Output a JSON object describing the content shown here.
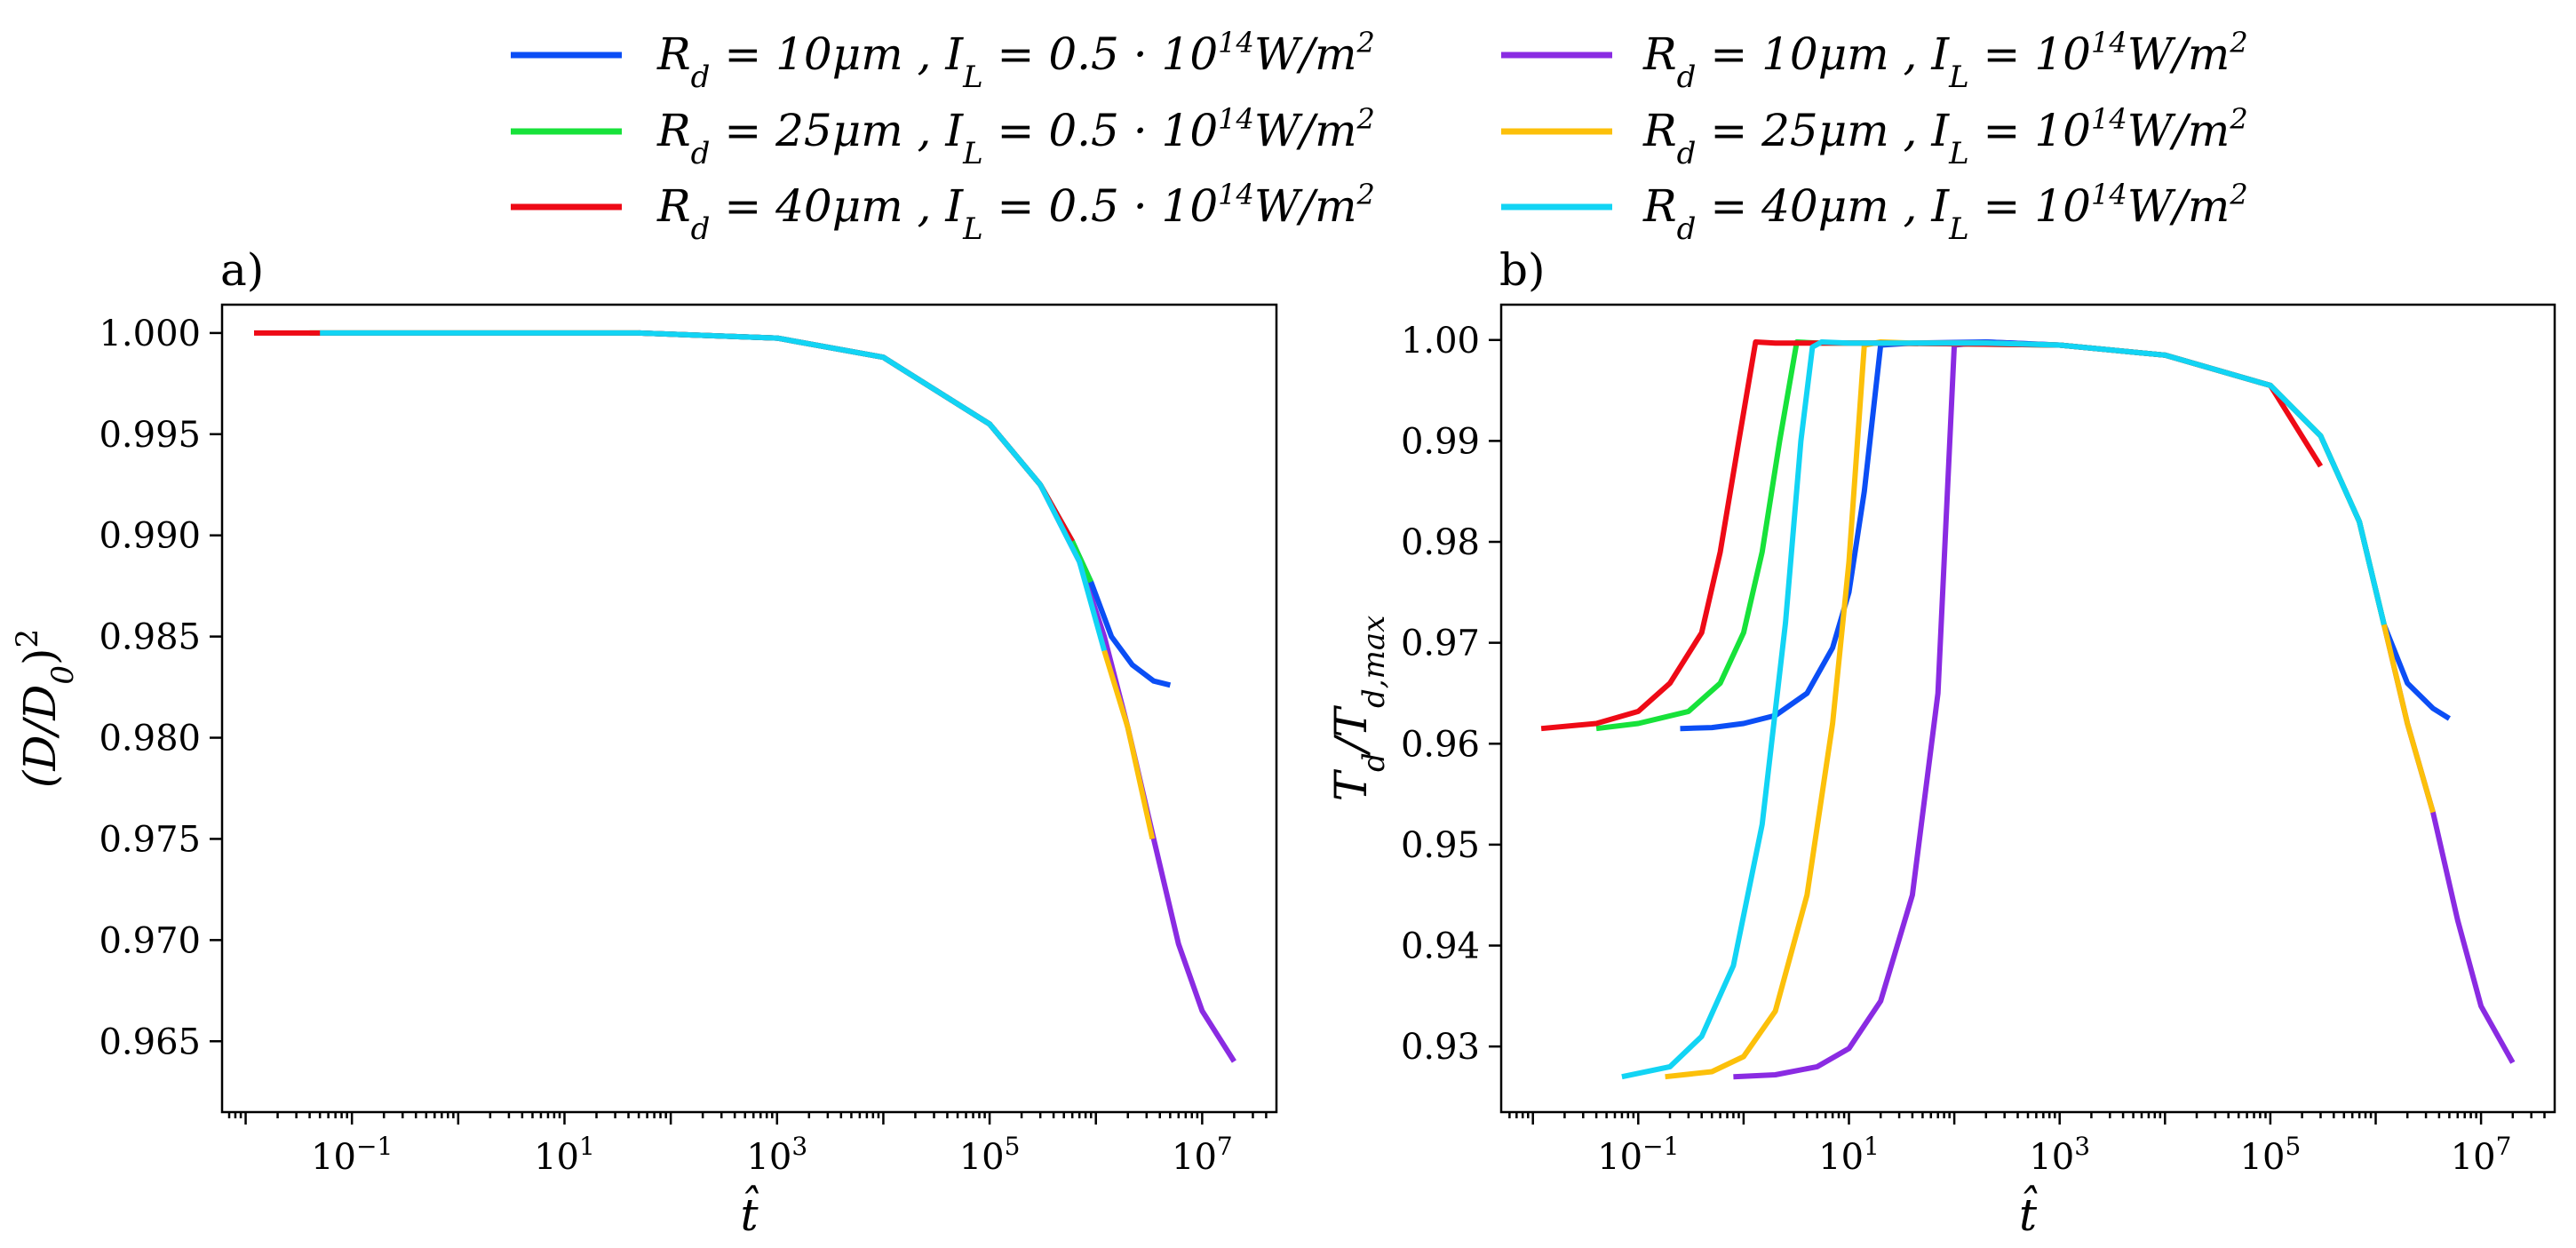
{
  "legend": [
    {
      "id": "s1",
      "label": "R_d = 10μm , I_L = 0.5 · 10^14 W/m^2",
      "rd": "10μm",
      "il": "0.5 · 10",
      "color": "#0b4ef5"
    },
    {
      "id": "s2",
      "label": "R_d = 25μm , I_L = 0.5 · 10^14 W/m^2",
      "rd": "25μm",
      "il": "0.5 · 10",
      "color": "#17e23a"
    },
    {
      "id": "s3",
      "label": "R_d = 40μm , I_L = 0.5 · 10^14 W/m^2",
      "rd": "40μm",
      "il": "0.5 · 10",
      "color": "#ee0a16"
    },
    {
      "id": "s4",
      "label": "R_d = 10μm , I_L = 10^14 W/m^2",
      "rd": "10μm",
      "il": "10",
      "color": "#8a2be2"
    },
    {
      "id": "s5",
      "label": "R_d = 25μm , I_L = 10^14 W/m^2",
      "rd": "25μm",
      "il": "10",
      "color": "#fcc00a"
    },
    {
      "id": "s6",
      "label": "R_d = 40μm , I_L = 10^14 W/m^2",
      "rd": "40μm",
      "il": "10",
      "color": "#12d4f4"
    }
  ],
  "chart_data": [
    {
      "panel": "a)",
      "type": "line",
      "xscale": "log",
      "xlabel": "t̂",
      "ylabel": "(D/D0)^2",
      "xlim": [
        0.006,
        50000000
      ],
      "ylim": [
        0.9615,
        1.0014
      ],
      "xticks": [
        {
          "value": 0.1,
          "base": "10",
          "exp": "−1"
        },
        {
          "value": 10,
          "base": "10",
          "exp": "1"
        },
        {
          "value": 1000,
          "base": "10",
          "exp": "3"
        },
        {
          "value": 100000,
          "base": "10",
          "exp": "5"
        },
        {
          "value": 10000000,
          "base": "10",
          "exp": "7"
        }
      ],
      "yticks": [
        {
          "value": 1.0,
          "label": "1.000"
        },
        {
          "value": 0.995,
          "label": "0.995"
        },
        {
          "value": 0.99,
          "label": "0.990"
        },
        {
          "value": 0.985,
          "label": "0.985"
        },
        {
          "value": 0.98,
          "label": "0.980"
        },
        {
          "value": 0.975,
          "label": "0.975"
        },
        {
          "value": 0.97,
          "label": "0.970"
        },
        {
          "value": 0.965,
          "label": "0.965"
        }
      ],
      "series": [
        {
          "ref": "s4",
          "name": "R_d = 10μm , I_L = 10^14 W/m^2",
          "x": [
            50,
            1000,
            10000,
            100000,
            300000,
            700000,
            1200000,
            2000000,
            3500000,
            6000000,
            10000000,
            20000000
          ],
          "y": [
            1.0,
            0.99975,
            0.9988,
            0.9955,
            0.9925,
            0.9887,
            0.985,
            0.9805,
            0.975,
            0.9698,
            0.9665,
            0.964
          ]
        },
        {
          "ref": "s1",
          "name": "R_d = 10μm , I_L = 0.5 · 10^14 W/m^2",
          "x": [
            50,
            1000,
            10000,
            100000,
            300000,
            600000,
            900000,
            1400000,
            2200000,
            3500000,
            5000000
          ],
          "y": [
            1.0,
            0.99975,
            0.9988,
            0.9955,
            0.9925,
            0.9897,
            0.9877,
            0.985,
            0.9836,
            0.9828,
            0.9826
          ]
        },
        {
          "ref": "s2",
          "name": "R_d = 25μm , I_L = 0.5 · 10^14 W/m^2",
          "x": [
            0.04,
            1,
            50,
            1000,
            10000,
            100000,
            300000,
            600000,
            900000
          ],
          "y": [
            1.0,
            1.0,
            1.0,
            0.99975,
            0.9988,
            0.9955,
            0.9925,
            0.9897,
            0.9877
          ]
        },
        {
          "ref": "s3",
          "name": "R_d = 40μm , I_L = 0.5 · 10^14 W/m^2",
          "x": [
            0.012,
            0.05,
            1,
            50,
            1000,
            10000,
            100000,
            300000,
            600000
          ],
          "y": [
            1.0,
            1.0,
            1.0,
            1.0,
            0.99975,
            0.9988,
            0.9955,
            0.9925,
            0.9897
          ]
        },
        {
          "ref": "s5",
          "name": "R_d = 25μm , I_L = 10^14 W/m^2",
          "x": [
            1200000,
            2000000,
            3400000
          ],
          "y": [
            0.9843,
            0.9805,
            0.975
          ]
        },
        {
          "ref": "s6",
          "name": "R_d = 40μm , I_L = 10^14 W/m^2",
          "x": [
            0.05,
            1,
            50,
            1000,
            10000,
            100000,
            300000,
            700000,
            1200000
          ],
          "y": [
            1.0,
            1.0,
            1.0,
            0.99975,
            0.9988,
            0.9955,
            0.9925,
            0.9887,
            0.9843
          ]
        }
      ]
    },
    {
      "panel": "b)",
      "type": "line",
      "xscale": "log",
      "xlabel": "t̂",
      "ylabel": "T_d/T_d,max",
      "xlim": [
        0.005,
        50000000
      ],
      "ylim": [
        0.9235,
        1.0035
      ],
      "xticks": [
        {
          "value": 0.1,
          "base": "10",
          "exp": "−1"
        },
        {
          "value": 10,
          "base": "10",
          "exp": "1"
        },
        {
          "value": 1000,
          "base": "10",
          "exp": "3"
        },
        {
          "value": 100000,
          "base": "10",
          "exp": "5"
        },
        {
          "value": 10000000,
          "base": "10",
          "exp": "7"
        }
      ],
      "yticks": [
        {
          "value": 1.0,
          "label": "1.00"
        },
        {
          "value": 0.99,
          "label": "0.99"
        },
        {
          "value": 0.98,
          "label": "0.98"
        },
        {
          "value": 0.97,
          "label": "0.97"
        },
        {
          "value": 0.96,
          "label": "0.96"
        },
        {
          "value": 0.95,
          "label": "0.95"
        },
        {
          "value": 0.94,
          "label": "0.94"
        },
        {
          "value": 0.93,
          "label": "0.93"
        }
      ],
      "series": [
        {
          "ref": "s4",
          "name": "R_d = 10μm , I_L = 10^14 W/m^2",
          "x": [
            0.8,
            2,
            5,
            10,
            20,
            40,
            70,
            100,
            200,
            1000,
            10000,
            100000,
            300000,
            700000,
            1200000,
            2000000,
            3500000,
            6000000,
            10000000,
            20000000
          ],
          "y": [
            0.927,
            0.9272,
            0.928,
            0.9298,
            0.9345,
            0.945,
            0.965,
            0.9995,
            0.9998,
            0.9995,
            0.9985,
            0.9955,
            0.9905,
            0.982,
            0.9718,
            0.962,
            0.9532,
            0.9425,
            0.934,
            0.9284
          ]
        },
        {
          "ref": "s1",
          "name": "R_d = 10μm , I_L = 0.5 · 10^14 W/m^2",
          "x": [
            0.25,
            0.5,
            1,
            2,
            4,
            7,
            10,
            14,
            20,
            40,
            200,
            1000,
            10000,
            100000,
            300000,
            700000,
            1200000,
            2000000,
            3500000,
            5000000
          ],
          "y": [
            0.9615,
            0.9616,
            0.962,
            0.9628,
            0.965,
            0.9695,
            0.975,
            0.985,
            0.9995,
            0.9997,
            0.9998,
            0.9995,
            0.9985,
            0.9955,
            0.9905,
            0.982,
            0.9718,
            0.966,
            0.9635,
            0.9625
          ]
        },
        {
          "ref": "s5",
          "name": "R_d = 25μm , I_L = 10^14 W/m^2",
          "x": [
            0.18,
            0.5,
            1,
            2,
            4,
            7,
            10,
            14,
            20,
            40,
            200,
            1000,
            10000,
            100000,
            300000,
            700000,
            1200000,
            2000000,
            3500000
          ],
          "y": [
            0.927,
            0.9275,
            0.929,
            0.9335,
            0.945,
            0.962,
            0.978,
            0.9995,
            0.9998,
            0.9997,
            0.9997,
            0.9995,
            0.9985,
            0.9955,
            0.9905,
            0.982,
            0.9718,
            0.962,
            0.9532
          ]
        },
        {
          "ref": "s2",
          "name": "R_d = 25μm , I_L = 0.5 · 10^14 W/m^2",
          "x": [
            0.04,
            0.1,
            0.3,
            0.6,
            1,
            1.5,
            2.2,
            3.2,
            5,
            20,
            1000,
            10000,
            100000,
            300000,
            700000,
            1200000
          ],
          "y": [
            0.9615,
            0.962,
            0.9632,
            0.966,
            0.971,
            0.979,
            0.99,
            0.9998,
            0.9997,
            0.9997,
            0.9995,
            0.9985,
            0.9955,
            0.9905,
            0.982,
            0.9718
          ]
        },
        {
          "ref": "s3",
          "name": "R_d = 40μm , I_L = 0.5 · 10^14 W/m^2",
          "x": [
            0.012,
            0.04,
            0.1,
            0.2,
            0.4,
            0.6,
            0.9,
            1.3,
            2,
            20,
            1000,
            10000,
            100000,
            300000
          ],
          "y": [
            0.9615,
            0.962,
            0.9632,
            0.966,
            0.971,
            0.979,
            0.99,
            0.9998,
            0.9997,
            0.9997,
            0.9995,
            0.9985,
            0.9955,
            0.9875
          ]
        },
        {
          "ref": "s6",
          "name": "R_d = 40μm , I_L = 10^14 W/m^2",
          "x": [
            0.07,
            0.2,
            0.4,
            0.8,
            1.5,
            2.5,
            3.5,
            4.5,
            5.5,
            10,
            200,
            1000,
            10000,
            100000,
            300000,
            700000,
            1200000
          ],
          "y": [
            0.927,
            0.928,
            0.931,
            0.938,
            0.952,
            0.972,
            0.99,
            0.9993,
            0.9998,
            0.9997,
            0.9997,
            0.9995,
            0.9985,
            0.9955,
            0.9905,
            0.982,
            0.9718
          ]
        }
      ]
    }
  ]
}
